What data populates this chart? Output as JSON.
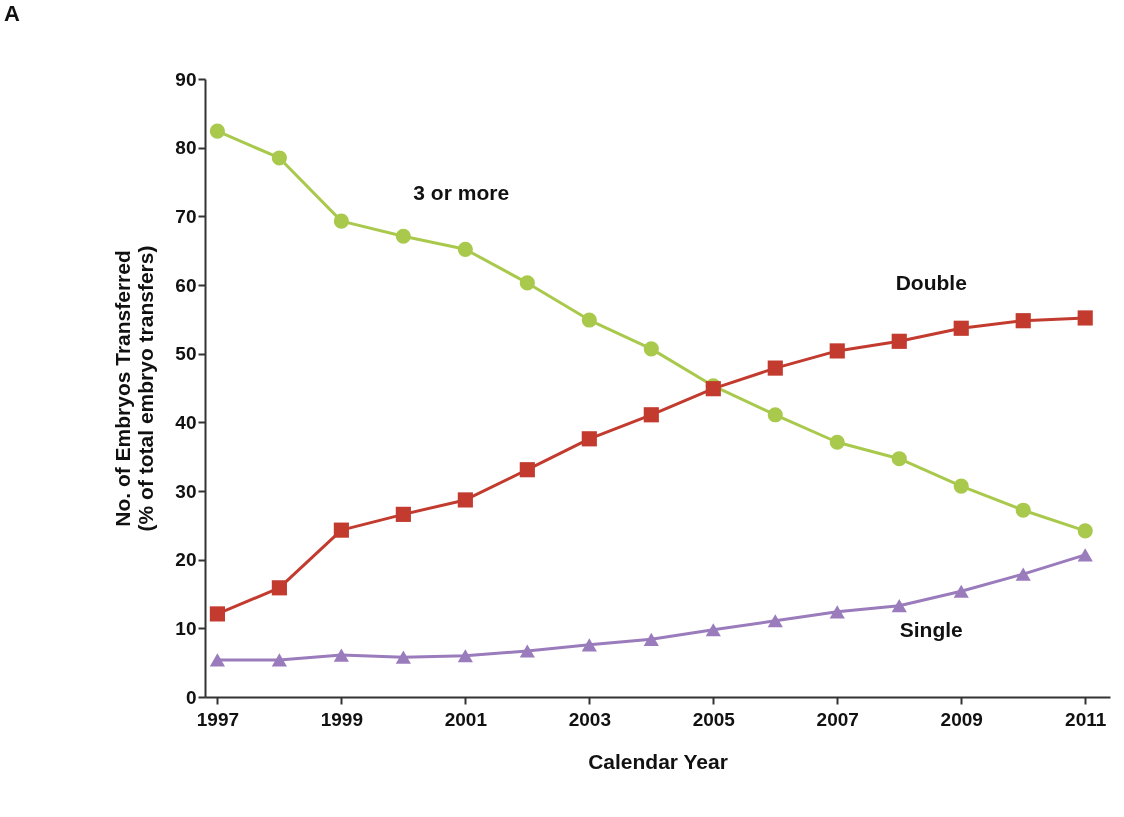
{
  "chart_data": {
    "type": "line",
    "xlabel": "Calendar Year",
    "ylabel": "No. of Embryos Transferred\n(% of total embryo transfers)",
    "annotations": [
      "A"
    ],
    "x": [
      1997,
      1998,
      1999,
      2000,
      2001,
      2002,
      2003,
      2004,
      2005,
      2006,
      2007,
      2008,
      2009,
      2010,
      2011
    ],
    "xlim": [
      1996.8,
      2011.4
    ],
    "xticks": [
      1997,
      1999,
      2001,
      2003,
      2005,
      2007,
      2009,
      2011
    ],
    "ylim": [
      0,
      90
    ],
    "yticks": [
      0,
      10,
      20,
      30,
      40,
      50,
      60,
      70,
      80,
      90
    ],
    "grid": false,
    "line_style": "solid",
    "series": [
      {
        "name": "3 or more",
        "color": "#a9c94c",
        "marker": "circle",
        "values": [
          82.4,
          78.5,
          69.3,
          67.1,
          65.2,
          60.3,
          54.9,
          50.7,
          45.3,
          41.1,
          37.1,
          34.7,
          30.7,
          27.2,
          24.2
        ]
      },
      {
        "name": "Double",
        "color": "#c23b2e",
        "marker": "square",
        "values": [
          12.1,
          15.9,
          24.3,
          26.6,
          28.7,
          33.1,
          37.6,
          41.1,
          44.9,
          47.9,
          50.4,
          51.8,
          53.7,
          54.8,
          55.2
        ]
      },
      {
        "name": "Single",
        "color": "#9a7cbd",
        "marker": "triangle",
        "values": [
          5.4,
          5.4,
          6.1,
          5.8,
          6.0,
          6.7,
          7.6,
          8.4,
          9.8,
          11.1,
          12.4,
          13.3,
          15.4,
          17.9,
          20.7
        ]
      }
    ]
  }
}
